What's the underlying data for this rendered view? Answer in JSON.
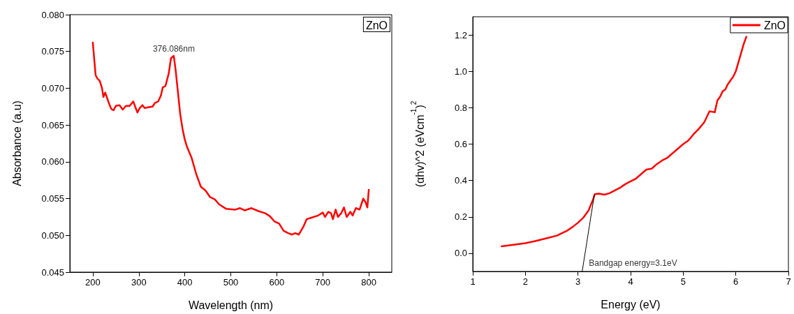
{
  "chart_data": [
    {
      "type": "line",
      "xlabel": "Wavelength (nm)",
      "ylabel": "Absorbance (a.u)",
      "annotations": [
        "ZnO",
        {
          "text": "376.086nm",
          "x": 376.086,
          "y": 0.0744
        }
      ],
      "xlim": [
        150,
        850
      ],
      "xticks": [
        200,
        300,
        400,
        500,
        600,
        700,
        800
      ],
      "ylim": [
        0.045,
        0.08
      ],
      "yticks": [
        {
          "value": 0.045,
          "label": "0.045"
        },
        {
          "value": 0.05,
          "label": "0.050"
        },
        {
          "value": 0.055,
          "label": "0.055"
        },
        {
          "value": 0.06,
          "label": "0.060"
        },
        {
          "value": 0.065,
          "label": "0.065"
        },
        {
          "value": 0.07,
          "label": "0.070"
        },
        {
          "value": 0.075,
          "label": "0.075"
        },
        {
          "value": 0.08,
          "label": "0.080"
        }
      ],
      "grid": false,
      "legend": false,
      "marker": "none",
      "line_style": "solid",
      "series": [
        {
          "color": "#ff0000",
          "x": [
            200,
            203,
            206,
            210,
            215,
            220,
            223,
            227,
            232,
            236,
            240,
            245,
            250,
            258,
            265,
            272,
            280,
            288,
            292,
            297,
            302,
            308,
            313,
            320,
            330,
            335,
            342,
            348,
            352,
            358,
            365,
            370,
            376,
            380,
            385,
            390,
            395,
            400,
            405,
            415,
            425,
            435,
            445,
            455,
            465,
            475,
            490,
            510,
            520,
            530,
            545,
            560,
            575,
            585,
            595,
            605,
            615,
            625,
            633,
            640,
            648,
            658,
            665,
            675,
            690,
            700,
            705,
            712,
            718,
            722,
            728,
            733,
            740,
            746,
            752,
            760,
            765,
            772,
            780,
            788,
            793,
            797,
            800
          ],
          "values": [
            0.0762,
            0.074,
            0.0718,
            0.0713,
            0.071,
            0.07,
            0.0688,
            0.0694,
            0.0685,
            0.0678,
            0.0672,
            0.067,
            0.0676,
            0.0677,
            0.0671,
            0.0676,
            0.0676,
            0.0682,
            0.0675,
            0.0667,
            0.0673,
            0.0677,
            0.0673,
            0.0674,
            0.0675,
            0.068,
            0.0682,
            0.069,
            0.0701,
            0.0703,
            0.072,
            0.0741,
            0.0744,
            0.0725,
            0.0695,
            0.0665,
            0.0645,
            0.063,
            0.062,
            0.0605,
            0.0583,
            0.0566,
            0.0561,
            0.0552,
            0.0549,
            0.0542,
            0.0536,
            0.0535,
            0.0537,
            0.0534,
            0.0537,
            0.0533,
            0.053,
            0.0526,
            0.0519,
            0.0516,
            0.0506,
            0.0503,
            0.0501,
            0.0503,
            0.0501,
            0.0512,
            0.0522,
            0.0524,
            0.0527,
            0.0531,
            0.0525,
            0.0532,
            0.053,
            0.0522,
            0.0535,
            0.0525,
            0.053,
            0.0538,
            0.0525,
            0.0532,
            0.0527,
            0.0537,
            0.0535,
            0.055,
            0.0545,
            0.0538,
            0.0562
          ]
        }
      ]
    },
    {
      "type": "line",
      "xlabel": "Energy (eV)",
      "ylabel": "(αhv)^2 (eVcm$^{-1}$)$^{2}$",
      "annotations": [
        {
          "text": "Bandgap energy=3.1eV",
          "x": 3.1,
          "y": -0.1
        }
      ],
      "xlim": [
        1,
        7
      ],
      "xticks": [
        1,
        2,
        3,
        4,
        5,
        6,
        7
      ],
      "ylim": [
        -0.1,
        1.3
      ],
      "yticks": [
        {
          "value": 0,
          "label": "0.0"
        },
        {
          "value": 0.2,
          "label": "0.2"
        },
        {
          "value": 0.4,
          "label": "0.4"
        },
        {
          "value": 0.6,
          "label": "0.6"
        },
        {
          "value": 0.8,
          "label": "0.8"
        },
        {
          "value": 1,
          "label": "1.0"
        },
        {
          "value": 1.2,
          "label": "1.2"
        }
      ],
      "grid": false,
      "legend": "top right",
      "marker": "none",
      "line_style": "solid",
      "series": [
        {
          "name": "ZnO",
          "color": "#ff0000",
          "x": [
            1.55,
            1.8,
            2.0,
            2.2,
            2.4,
            2.6,
            2.8,
            2.9,
            3.0,
            3.1,
            3.2,
            3.28,
            3.32,
            3.4,
            3.5,
            3.6,
            3.7,
            3.8,
            3.9,
            4.0,
            4.1,
            4.2,
            4.3,
            4.4,
            4.5,
            4.6,
            4.7,
            4.8,
            4.9,
            5.0,
            5.1,
            5.2,
            5.3,
            5.4,
            5.5,
            5.6,
            5.65,
            5.7,
            5.75,
            5.8,
            5.85,
            5.9,
            5.95,
            6.0,
            6.05,
            6.1,
            6.15,
            6.2
          ],
          "values": [
            0.038,
            0.048,
            0.055,
            0.068,
            0.082,
            0.097,
            0.125,
            0.145,
            0.168,
            0.195,
            0.235,
            0.29,
            0.325,
            0.328,
            0.322,
            0.33,
            0.345,
            0.36,
            0.38,
            0.395,
            0.41,
            0.435,
            0.46,
            0.465,
            0.49,
            0.51,
            0.525,
            0.55,
            0.575,
            0.6,
            0.62,
            0.655,
            0.685,
            0.72,
            0.78,
            0.775,
            0.84,
            0.86,
            0.89,
            0.9,
            0.93,
            0.95,
            0.97,
            1.0,
            1.05,
            1.1,
            1.15,
            1.19
          ]
        },
        {
          "type": "line",
          "color": "#000000",
          "x": [
            3.08,
            3.31
          ],
          "values": [
            -0.1,
            0.32
          ]
        }
      ]
    }
  ]
}
